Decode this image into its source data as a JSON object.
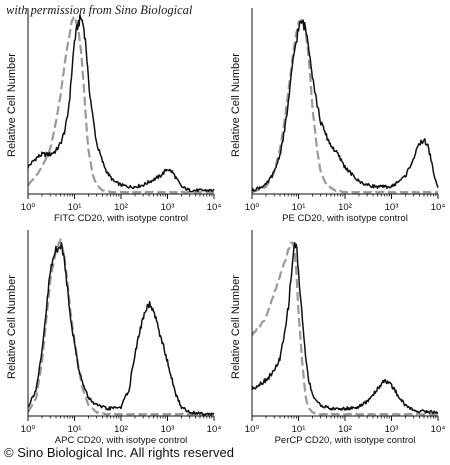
{
  "watermark": "with permission from Sino Biological",
  "copyright": "© Sino Biological Inc. All rights reserved",
  "colors": {
    "sample": "#111111",
    "isotype": "#9a9a9a",
    "axis": "#111111"
  },
  "chart_data": [
    {
      "type": "line",
      "title": "",
      "xlabel": "FITC  CD20,  with isotype control",
      "ylabel": "Relative Cell Number",
      "x_scale": "log",
      "xlim": [
        1,
        10000
      ],
      "x_ticks": [
        "10⁰",
        "10¹",
        "10²",
        "10³",
        "10⁴"
      ],
      "grid": false,
      "series": [
        {
          "role": "sample",
          "style": "solid-black",
          "x": [
            1,
            1.5,
            2,
            3,
            4,
            5,
            6,
            7,
            8,
            9,
            10,
            12,
            14,
            16,
            18,
            20,
            25,
            30,
            40,
            50,
            70,
            100,
            150,
            200,
            300,
            500,
            700,
            1000,
            1300,
            1600,
            2000,
            3000,
            5000,
            10000
          ],
          "y": [
            0.15,
            0.2,
            0.22,
            0.22,
            0.24,
            0.28,
            0.34,
            0.42,
            0.55,
            0.72,
            0.85,
            0.95,
            0.98,
            0.92,
            0.8,
            0.62,
            0.42,
            0.28,
            0.18,
            0.12,
            0.07,
            0.05,
            0.04,
            0.04,
            0.05,
            0.08,
            0.1,
            0.14,
            0.12,
            0.08,
            0.04,
            0.02,
            0.02,
            0.02
          ]
        },
        {
          "role": "isotype",
          "style": "dashed-gray",
          "x": [
            1,
            1.5,
            2,
            3,
            4,
            5,
            6,
            7,
            8,
            9,
            10,
            12,
            14,
            16,
            18,
            20,
            25,
            30,
            40,
            60,
            100,
            200,
            1000,
            10000
          ],
          "y": [
            0.05,
            0.1,
            0.15,
            0.25,
            0.4,
            0.55,
            0.7,
            0.82,
            0.9,
            0.97,
            0.98,
            0.92,
            0.78,
            0.58,
            0.38,
            0.24,
            0.1,
            0.05,
            0.02,
            0.01,
            0.01,
            0.01,
            0.01,
            0.01
          ]
        }
      ]
    },
    {
      "type": "line",
      "title": "",
      "xlabel": "PE CD20, with isotype control",
      "ylabel": "Relative Cell Number",
      "x_scale": "log",
      "xlim": [
        1,
        10000
      ],
      "x_ticks": [
        "10⁰",
        "10¹",
        "10²",
        "10³",
        "10⁴"
      ],
      "grid": false,
      "series": [
        {
          "role": "sample",
          "style": "solid-black",
          "x": [
            1,
            2,
            3,
            4,
            5,
            6,
            7,
            8,
            10,
            12,
            14,
            16,
            18,
            20,
            25,
            30,
            40,
            50,
            70,
            100,
            150,
            200,
            300,
            500,
            1000,
            2000,
            3000,
            4000,
            5000,
            6000,
            7000,
            8000,
            10000
          ],
          "y": [
            0.02,
            0.05,
            0.12,
            0.22,
            0.35,
            0.5,
            0.65,
            0.78,
            0.92,
            0.96,
            0.92,
            0.85,
            0.76,
            0.66,
            0.5,
            0.4,
            0.32,
            0.27,
            0.22,
            0.15,
            0.1,
            0.07,
            0.05,
            0.04,
            0.04,
            0.1,
            0.2,
            0.28,
            0.3,
            0.27,
            0.2,
            0.12,
            0.03
          ]
        },
        {
          "role": "isotype",
          "style": "dashed-gray",
          "x": [
            1,
            2,
            3,
            4,
            5,
            6,
            7,
            8,
            10,
            12,
            14,
            16,
            18,
            20,
            25,
            30,
            40,
            60,
            100,
            200,
            1000,
            10000
          ],
          "y": [
            0.01,
            0.04,
            0.12,
            0.25,
            0.4,
            0.56,
            0.7,
            0.82,
            0.95,
            0.97,
            0.92,
            0.8,
            0.64,
            0.48,
            0.25,
            0.12,
            0.05,
            0.02,
            0.01,
            0.01,
            0.01,
            0.01
          ]
        }
      ]
    },
    {
      "type": "line",
      "title": "",
      "xlabel": "APC CD20, with isotype control",
      "ylabel": "Relative Cell Number",
      "x_scale": "log",
      "xlim": [
        1,
        10000
      ],
      "x_ticks": [
        "10⁰",
        "10¹",
        "10²",
        "10³",
        "10⁴"
      ],
      "grid": false,
      "series": [
        {
          "role": "sample",
          "style": "solid-black",
          "x": [
            1,
            1.5,
            2,
            2.5,
            3,
            4,
            5,
            6,
            7,
            8,
            10,
            12,
            15,
            20,
            30,
            50,
            100,
            150,
            200,
            300,
            400,
            500,
            700,
            1000,
            1500,
            2000,
            3000,
            10000
          ],
          "y": [
            0.05,
            0.15,
            0.35,
            0.6,
            0.8,
            0.93,
            0.95,
            0.88,
            0.72,
            0.58,
            0.4,
            0.28,
            0.18,
            0.1,
            0.06,
            0.04,
            0.05,
            0.15,
            0.35,
            0.55,
            0.62,
            0.58,
            0.45,
            0.3,
            0.12,
            0.05,
            0.02,
            0.01
          ]
        },
        {
          "role": "isotype",
          "style": "dashed-gray",
          "x": [
            1,
            1.5,
            2,
            2.5,
            3,
            4,
            5,
            6,
            7,
            8,
            10,
            12,
            15,
            20,
            30,
            50,
            100,
            200,
            1000,
            10000
          ],
          "y": [
            0.02,
            0.1,
            0.3,
            0.55,
            0.75,
            0.92,
            0.98,
            0.9,
            0.75,
            0.6,
            0.42,
            0.28,
            0.15,
            0.06,
            0.02,
            0.01,
            0.01,
            0.01,
            0.01,
            0.01
          ]
        }
      ]
    },
    {
      "type": "line",
      "title": "",
      "xlabel": "PerCP CD20, with isotype control",
      "ylabel": "Relative Cell Number",
      "x_scale": "log",
      "xlim": [
        1,
        10000
      ],
      "x_ticks": [
        "10⁰",
        "10¹",
        "10²",
        "10³",
        "10⁴"
      ],
      "grid": false,
      "series": [
        {
          "role": "sample",
          "style": "solid-black",
          "x": [
            1,
            2,
            3,
            4,
            5,
            6,
            7,
            8,
            9,
            10,
            12,
            14,
            16,
            20,
            25,
            30,
            50,
            100,
            200,
            300,
            500,
            700,
            1000,
            1500,
            2000,
            3000,
            10000
          ],
          "y": [
            0.15,
            0.2,
            0.25,
            0.32,
            0.45,
            0.6,
            0.78,
            0.95,
            0.95,
            0.8,
            0.55,
            0.35,
            0.22,
            0.12,
            0.08,
            0.06,
            0.04,
            0.04,
            0.05,
            0.08,
            0.15,
            0.2,
            0.17,
            0.1,
            0.06,
            0.03,
            0.02
          ]
        },
        {
          "role": "isotype",
          "style": "dashed-gray",
          "x": [
            1,
            1.5,
            2,
            3,
            4,
            5,
            6,
            7,
            8,
            9,
            10,
            12,
            14,
            16,
            20,
            30,
            100,
            1000,
            10000
          ],
          "y": [
            0.45,
            0.5,
            0.55,
            0.68,
            0.78,
            0.85,
            0.92,
            0.97,
            0.95,
            0.8,
            0.58,
            0.3,
            0.12,
            0.05,
            0.02,
            0.01,
            0.01,
            0.01,
            0.01
          ]
        }
      ]
    }
  ]
}
